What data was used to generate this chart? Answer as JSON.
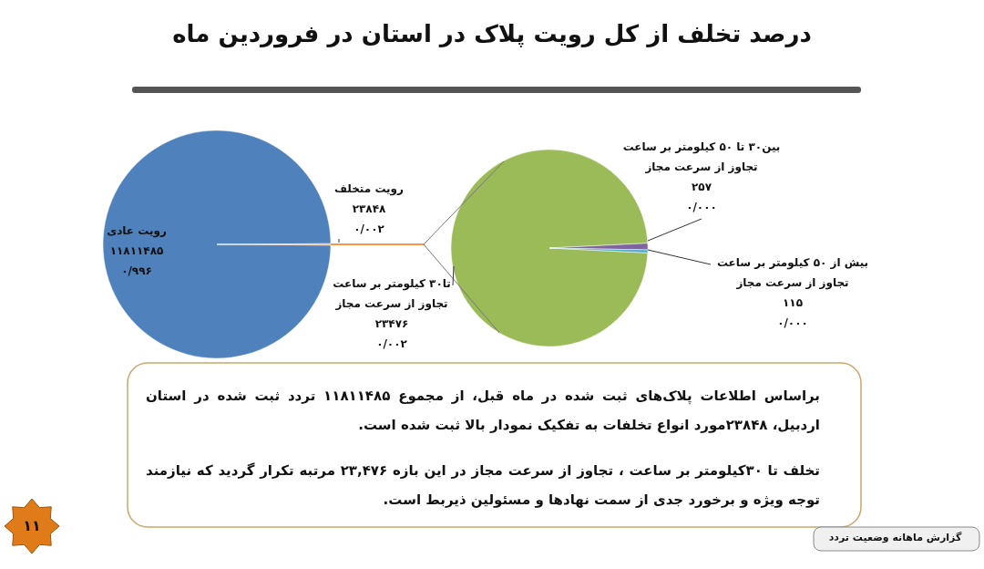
{
  "chart_data": [
    {
      "type": "pie",
      "title": "درصد تخلف از کل رویت پلاک در استان در فروردین ماه",
      "categories": [
        "رویت عادی",
        "رویت متخلف"
      ],
      "values": [
        11811485,
        23848
      ],
      "colors": [
        "#4f81bd",
        "#f79646"
      ],
      "value_labels": [
        "۱۱۸۱۱۴۸۵\n۰/۹۹۶",
        "۲۳۸۴۸\n۰/۰۰۲"
      ],
      "annotations": [
        "براساس اطلاعات پلاک‌های ثبت شده در ماه قبل، از مجموع ۱۱۸۱۱۴۸۵ تردد ثبت شده در استان اردبیل، ۲۳۸۴۸مورد انواع تخلفات به تفکیک نمودار بالا ثبت شده است.",
        "تخلف تا ۳۰کیلومتر بر ساعت ، تجاوز از سرعت مجاز در این بازه ۲۳,۴۷۶ مرتبه تکرار گردید که نیازمند توجه ویژه و برخورد جدی از سمت نهادها و مسئولین ذیربط است.",
        "گزارش ماهانه وضعیت تردد",
        "۱۱"
      ]
    },
    {
      "type": "pie",
      "categories": [
        "تا۳۰ کیلومتر بر ساعت تجاوز از سرعت مجاز",
        "بین۳۰ تا ۵۰ کیلومتر بر ساعت تجاوز از سرعت مجاز",
        "بیش از ۵۰ کیلومتر بر ساعت تجاوز از سرعت مجاز"
      ],
      "values": [
        23476,
        257,
        115
      ],
      "colors": [
        "#9bbb59",
        "#8064a2",
        "#4bacc6"
      ],
      "value_labels": [
        "۲۳۴۷۶\n۰/۰۰۲",
        "۲۵۷\n۰/۰۰۰",
        "۱۱۵\n۰/۰۰۰"
      ]
    }
  ]
}
